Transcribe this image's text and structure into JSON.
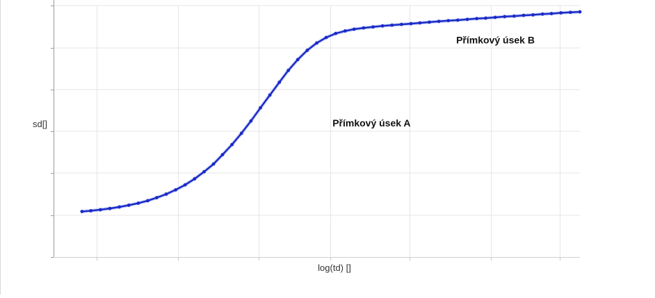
{
  "chart_data": {
    "type": "line",
    "xlabel": "log(td) []",
    "ylabel": "sd[]",
    "grid": true,
    "legend": "none",
    "line_color": "#1a2bc8",
    "x_range": [
      0,
      1
    ],
    "y_range": [
      0,
      1
    ],
    "x": [
      0.054,
      0.071,
      0.089,
      0.107,
      0.125,
      0.143,
      0.161,
      0.179,
      0.196,
      0.214,
      0.232,
      0.25,
      0.268,
      0.286,
      0.304,
      0.321,
      0.339,
      0.357,
      0.375,
      0.393,
      0.411,
      0.429,
      0.446,
      0.464,
      0.482,
      0.5,
      0.518,
      0.536,
      0.554,
      0.571,
      0.589,
      0.607,
      0.625,
      0.643,
      0.661,
      0.679,
      0.696,
      0.714,
      0.732,
      0.75,
      0.768,
      0.786,
      0.804,
      0.821,
      0.839,
      0.857,
      0.875,
      0.893,
      0.911,
      0.929,
      0.946,
      0.964,
      0.982,
      1.0
    ],
    "series": [
      {
        "values": [
          0.181,
          0.184,
          0.188,
          0.193,
          0.199,
          0.206,
          0.214,
          0.224,
          0.236,
          0.25,
          0.267,
          0.287,
          0.311,
          0.339,
          0.37,
          0.407,
          0.447,
          0.492,
          0.541,
          0.593,
          0.644,
          0.695,
          0.742,
          0.785,
          0.822,
          0.851,
          0.873,
          0.889,
          0.899,
          0.906,
          0.911,
          0.915,
          0.919,
          0.922,
          0.925,
          0.928,
          0.931,
          0.934,
          0.937,
          0.94,
          0.942,
          0.945,
          0.948,
          0.95,
          0.953,
          0.956,
          0.958,
          0.961,
          0.963,
          0.966,
          0.968,
          0.971,
          0.973,
          0.975
        ]
      }
    ],
    "annotations": [
      {
        "text": "Přímkový úsek A",
        "x": 0.53,
        "y": 0.52
      },
      {
        "text": "Přímkový úsek B",
        "x": 0.765,
        "y": 0.85
      }
    ]
  }
}
